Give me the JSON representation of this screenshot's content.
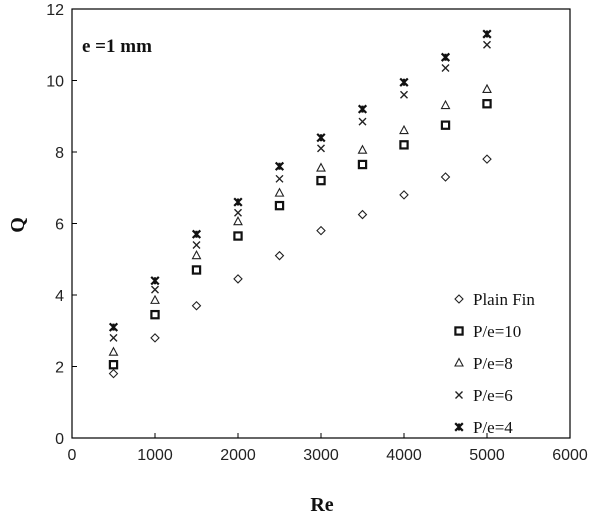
{
  "chart_data": {
    "type": "scatter",
    "title": "",
    "annotation": "e =1 mm",
    "xlabel": "Re",
    "ylabel": "Q",
    "xlim": [
      0,
      6000
    ],
    "ylim": [
      0,
      12
    ],
    "xticks": [
      "0",
      "1000",
      "2000",
      "3000",
      "4000",
      "5000",
      "6000"
    ],
    "yticks": [
      "0",
      "2",
      "4",
      "6",
      "8",
      "10",
      "12"
    ],
    "grid": false,
    "legend_position": "bottom-right",
    "series": [
      {
        "name": "Plain Fin",
        "marker": "diamond-open",
        "x": [
          500,
          1000,
          1500,
          2000,
          2500,
          3000,
          3500,
          4000,
          4500,
          5000
        ],
        "y": [
          1.8,
          2.8,
          3.7,
          4.45,
          5.1,
          5.8,
          6.25,
          6.8,
          7.3,
          7.8
        ]
      },
      {
        "name": "P/e=10",
        "marker": "square-open",
        "x": [
          500,
          1000,
          1500,
          2000,
          2500,
          3000,
          3500,
          4000,
          4500,
          5000
        ],
        "y": [
          2.05,
          3.45,
          4.7,
          5.65,
          6.5,
          7.2,
          7.65,
          8.2,
          8.75,
          9.35
        ]
      },
      {
        "name": "P/e=8",
        "marker": "triangle-open",
        "x": [
          500,
          1000,
          1500,
          2000,
          2500,
          3000,
          3500,
          4000,
          4500,
          5000
        ],
        "y": [
          2.4,
          3.85,
          5.1,
          6.05,
          6.85,
          7.55,
          8.05,
          8.6,
          9.3,
          9.75
        ]
      },
      {
        "name": "P/e=6",
        "marker": "x",
        "x": [
          500,
          1000,
          1500,
          2000,
          2500,
          3000,
          3500,
          4000,
          4500,
          5000
        ],
        "y": [
          2.8,
          4.15,
          5.4,
          6.3,
          7.25,
          8.1,
          8.85,
          9.6,
          10.35,
          11.0
        ]
      },
      {
        "name": "P/e=4",
        "marker": "star",
        "x": [
          500,
          1000,
          1500,
          2000,
          2500,
          3000,
          3500,
          4000,
          4500,
          5000
        ],
        "y": [
          3.1,
          4.4,
          5.7,
          6.6,
          7.6,
          8.4,
          9.2,
          9.95,
          10.65,
          11.3
        ]
      }
    ]
  }
}
